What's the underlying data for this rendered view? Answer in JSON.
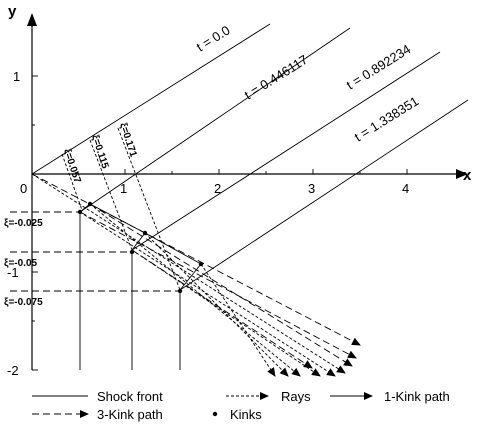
{
  "axes": {
    "x_label": "x",
    "y_label": "y",
    "x_ticks": [
      "0",
      "1",
      "2",
      "3",
      "4"
    ],
    "y_ticks": [
      "1",
      "-1",
      "-2"
    ]
  },
  "shock_fronts": [
    {
      "label": "t = 0.0"
    },
    {
      "label": "t = 0.446117"
    },
    {
      "label": "t = 0.892234"
    },
    {
      "label": "t = 1.338351"
    }
  ],
  "ray_labels": [
    "ξ=0.057",
    "ξ=0.115",
    "ξ=0.171"
  ],
  "kink_labels": [
    "ξ=-0.025",
    "ξ=-0.05",
    "ξ=-0.075"
  ],
  "legend": {
    "shock_front": "Shock front",
    "rays": "Rays",
    "one_kink": "1-Kink path",
    "three_kink": "3-Kink path",
    "kinks": "Kinks"
  }
}
